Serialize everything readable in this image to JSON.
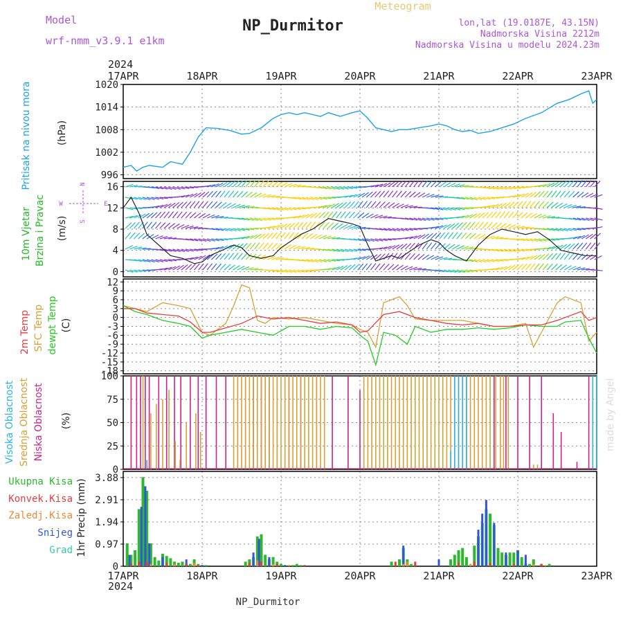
{
  "header": {
    "model_label": "Model",
    "model_name": "wrf-nmm_v3.9.1  e1km",
    "title": "NP_Durmitor",
    "meteogram": "Meteogram",
    "lonlat": "lon,lat (19.0187E, 43.15N)",
    "elevation": "Nadmorska Visina 2212m",
    "elevation_model": "Nadmorska Visina u modelu 2024.23m",
    "year": "2024",
    "footer": "NP_Durmitor",
    "watermark": "made by Angel"
  },
  "colors": {
    "pressure": "#1aa3e8",
    "wind_label": "#22bb22",
    "t2m": "#e83c3c",
    "sfc": "#d9a033",
    "dew": "#22cc22",
    "cloud_high": "#29b6e0",
    "cloud_mid": "#d9a033",
    "cloud_low": "#cc2288",
    "precip_total": "#2db82d",
    "precip_conv": "#e83c3c",
    "precip_frozen": "#ee8833",
    "precip_snow": "#3355dd",
    "precip_graupel": "#33ccaa",
    "grid": "#888888",
    "model_text": "#aa55dd"
  },
  "chart_data": [
    {
      "type": "line",
      "id": "pressure",
      "ylabel": "Pritisak na nivou mora",
      "unit": "(hPa)",
      "x_ticks": [
        "17APR",
        "18APR",
        "19APR",
        "20APR",
        "21APR",
        "22APR",
        "23APR"
      ],
      "ylim": [
        995,
        1020
      ],
      "yticks": [
        996,
        1002,
        1008,
        1014,
        1020
      ],
      "series": [
        {
          "x": [
            0,
            0.1,
            0.17,
            0.25,
            0.33,
            0.5,
            0.6,
            0.75,
            0.85,
            0.95,
            1.05,
            1.2,
            1.35,
            1.5,
            1.6,
            1.75,
            1.9,
            2.0,
            2.1,
            2.2,
            2.3,
            2.4,
            2.5,
            2.6,
            2.75,
            2.9,
            3.0,
            3.1,
            3.2,
            3.3,
            3.4,
            3.5,
            3.6,
            3.75,
            3.9,
            4.0,
            4.1,
            4.2,
            4.3,
            4.4,
            4.5,
            4.65,
            4.8,
            4.95,
            5.1,
            5.3,
            5.5,
            5.65,
            5.8,
            5.9,
            5.95,
            6.0
          ],
          "y": [
            998,
            998.5,
            997,
            998,
            998.5,
            998,
            999.5,
            998.8,
            1002,
            1006,
            1008.5,
            1008.3,
            1007.8,
            1006.8,
            1007,
            1008.5,
            1011,
            1012,
            1012.5,
            1012,
            1012.5,
            1012,
            1011.5,
            1012.5,
            1011.5,
            1012.5,
            1013,
            1011,
            1008.5,
            1008,
            1007.5,
            1008,
            1008,
            1008.5,
            1009,
            1009.5,
            1009,
            1008,
            1007.5,
            1007.8,
            1007,
            1007.5,
            1008.5,
            1009.5,
            1011,
            1012.5,
            1015,
            1016,
            1017.5,
            1018.3,
            1015,
            1016
          ]
        }
      ]
    },
    {
      "type": "line",
      "id": "wind",
      "ylabel_1": "10m Vjetar",
      "ylabel_2": "Brzina i Pravac",
      "unit": "(m/s)",
      "ylim": [
        -1,
        17
      ],
      "yticks": [
        0,
        4,
        8,
        12,
        16
      ],
      "compass": {
        "n": "N",
        "s": "S",
        "e": "E",
        "w": "W"
      },
      "series": [
        {
          "x": [
            0,
            0.1,
            0.2,
            0.3,
            0.45,
            0.6,
            0.75,
            0.9,
            1.0,
            1.1,
            1.25,
            1.4,
            1.5,
            1.6,
            1.75,
            1.9,
            2.0,
            2.1,
            2.25,
            2.4,
            2.5,
            2.6,
            2.75,
            2.9,
            3.0,
            3.1,
            3.2,
            3.3,
            3.4,
            3.5,
            3.6,
            3.75,
            3.9,
            4.0,
            4.1,
            4.2,
            4.35,
            4.5,
            4.65,
            4.8,
            4.95,
            5.1,
            5.25,
            5.4,
            5.55,
            5.7,
            5.85,
            6.0
          ],
          "y": [
            12,
            14,
            11,
            7,
            5,
            3,
            2.5,
            1.5,
            1.8,
            3,
            4,
            5,
            4.5,
            3,
            2.5,
            3,
            4.5,
            5.5,
            7,
            8,
            9,
            10,
            9.5,
            9,
            8.5,
            5,
            2,
            2.5,
            3,
            2.5,
            3.5,
            5,
            6,
            5.5,
            4,
            3,
            2,
            5,
            7,
            8,
            7.5,
            7,
            7.5,
            6,
            4,
            3.5,
            3,
            3
          ]
        }
      ]
    },
    {
      "type": "line",
      "id": "temperature",
      "ylabels": [
        "2m Temp",
        "SFC Temp",
        "dewpt Temp"
      ],
      "unit": "(C)",
      "ylim": [
        -19,
        13
      ],
      "yticks": [
        12,
        9,
        6,
        3,
        0,
        -3,
        -6,
        -9,
        -12,
        -15,
        -18
      ],
      "series": [
        {
          "name": "2m Temp",
          "x": [
            0,
            0.15,
            0.3,
            0.5,
            0.7,
            0.85,
            1.0,
            1.1,
            1.3,
            1.5,
            1.7,
            1.9,
            2.1,
            2.3,
            2.5,
            2.7,
            2.9,
            3.0,
            3.1,
            3.3,
            3.5,
            3.7,
            3.9,
            4.1,
            4.3,
            4.5,
            4.7,
            4.9,
            5.1,
            5.3,
            5.5,
            5.6,
            5.8,
            5.9,
            6.0
          ],
          "y": [
            3,
            3,
            1.5,
            1,
            0.5,
            -1.5,
            -5,
            -5,
            -3.5,
            -2,
            0.5,
            -0.5,
            0,
            -1,
            -2,
            -1.5,
            -2.5,
            -5,
            -4.5,
            1,
            2,
            0,
            -1,
            -2,
            -2.5,
            -2,
            -3,
            -3,
            -2.5,
            -2.5,
            -1,
            0,
            2,
            -1,
            0
          ]
        },
        {
          "name": "SFC Temp",
          "x": [
            0,
            0.15,
            0.3,
            0.5,
            0.7,
            0.85,
            1.0,
            1.1,
            1.3,
            1.4,
            1.5,
            1.6,
            1.7,
            1.8,
            1.9,
            2.1,
            2.3,
            2.5,
            2.7,
            2.9,
            3.0,
            3.1,
            3.2,
            3.3,
            3.5,
            3.6,
            3.7,
            3.9,
            4.1,
            4.3,
            4.5,
            4.7,
            4.9,
            5.1,
            5.2,
            5.4,
            5.5,
            5.6,
            5.8,
            5.9,
            6.0
          ],
          "y": [
            4,
            3,
            2,
            5,
            4,
            3,
            -5,
            -6,
            -2,
            4,
            11,
            10,
            -1,
            -2,
            0,
            -0.5,
            0,
            -1,
            -2,
            -2.5,
            -4,
            -5,
            -10,
            5,
            7,
            4,
            -0.5,
            -1,
            -1,
            -1,
            -2,
            -3,
            -3,
            -2,
            -10,
            0,
            5,
            7,
            5,
            -8,
            -5
          ]
        },
        {
          "name": "dewpt Temp",
          "x": [
            0,
            0.15,
            0.3,
            0.5,
            0.7,
            0.85,
            1.0,
            1.1,
            1.3,
            1.5,
            1.7,
            1.9,
            2.1,
            2.3,
            2.5,
            2.7,
            2.9,
            3.0,
            3.1,
            3.2,
            3.3,
            3.45,
            3.6,
            3.7,
            3.9,
            4.1,
            4.3,
            4.5,
            4.7,
            4.9,
            5.1,
            5.3,
            5.5,
            5.6,
            5.8,
            5.9,
            6.0
          ],
          "y": [
            4,
            2,
            1,
            -1,
            -2,
            -3,
            -7,
            -6,
            -5,
            -4,
            -5,
            -6,
            -3,
            -3,
            -4,
            -3,
            -3.5,
            -6,
            -8,
            -16,
            -5,
            -6,
            -9,
            -3,
            -5,
            -4,
            -4,
            -3.5,
            -4,
            -3.5,
            -2.5,
            -3,
            -3,
            -1.5,
            -1,
            -7,
            -12
          ]
        }
      ]
    },
    {
      "type": "bar",
      "id": "cloud",
      "ylabels": [
        "Visoka Oblacnost",
        "Srednja Oblacnost",
        "Niska Oblacnost"
      ],
      "unit": "(%)",
      "ylim": [
        0,
        100
      ],
      "yticks": [
        0,
        25,
        50,
        75,
        100
      ],
      "series": [
        {
          "name": "Niska Oblacnost",
          "x": [
            0.1,
            0.17,
            0.22,
            0.28,
            0.33,
            0.45,
            0.55,
            0.65,
            0.73,
            0.85,
            0.95,
            1.05,
            1.18,
            1.3,
            1.45,
            1.55,
            1.65,
            1.75,
            1.85,
            1.95,
            2.1,
            2.25,
            2.45,
            2.65,
            2.85,
            3.0,
            4.7,
            4.85,
            5.0,
            5.15,
            5.3,
            5.45,
            5.55,
            5.75,
            5.9
          ],
          "y": [
            100,
            100,
            100,
            100,
            100,
            100,
            100,
            100,
            100,
            100,
            100,
            100,
            100,
            100,
            100,
            100,
            100,
            100,
            100,
            100,
            100,
            100,
            100,
            100,
            100,
            85,
            100,
            100,
            100,
            100,
            100,
            60,
            40,
            8,
            100
          ]
        },
        {
          "name": "Srednja Oblacnost",
          "x": [
            0.25,
            0.35,
            0.42,
            0.5,
            0.58,
            0.66,
            0.72,
            0.8,
            0.92,
            0.98,
            1.4,
            1.45,
            1.5,
            1.55,
            1.6,
            1.65,
            1.7,
            1.75,
            1.8,
            1.85,
            1.9,
            1.95,
            2.0,
            2.05,
            2.1,
            2.15,
            2.2,
            2.25,
            2.3,
            2.35,
            2.4,
            2.45,
            2.5,
            2.55,
            3.05,
            3.1,
            3.15,
            3.2,
            3.25,
            3.3,
            3.35,
            3.4,
            3.45,
            3.5,
            3.55,
            3.6,
            3.65,
            3.7,
            3.75,
            3.8,
            3.85,
            3.9,
            3.95,
            4.0,
            4.05,
            4.1,
            4.15,
            4.2,
            4.25,
            4.3,
            4.35,
            4.4,
            4.45,
            4.5,
            4.55,
            4.6,
            4.65,
            4.72,
            4.78,
            4.82,
            4.88,
            5.2,
            5.25
          ],
          "y": [
            100,
            60,
            70,
            75,
            85,
            30,
            10,
            50,
            60,
            40,
            100,
            100,
            100,
            100,
            100,
            100,
            100,
            100,
            100,
            100,
            100,
            100,
            100,
            100,
            100,
            100,
            100,
            100,
            100,
            100,
            100,
            100,
            100,
            100,
            100,
            100,
            100,
            100,
            100,
            100,
            100,
            100,
            100,
            100,
            100,
            100,
            100,
            100,
            100,
            100,
            100,
            100,
            100,
            100,
            100,
            100,
            100,
            100,
            100,
            100,
            100,
            100,
            100,
            100,
            100,
            100,
            100,
            100,
            100,
            100,
            100,
            5,
            5
          ]
        },
        {
          "name": "Visoka Oblacnost",
          "x": [
            0.3,
            4.15,
            4.2,
            4.25,
            4.3,
            4.35,
            5.95,
            6.0
          ],
          "y": [
            10,
            20,
            100,
            100,
            100,
            100,
            100,
            100
          ]
        }
      ]
    },
    {
      "type": "bar",
      "id": "precip",
      "ylabels": [
        "Ukupna Kisa",
        "Konvek.Kisa",
        "Zaledj.Kisa",
        "Snijeg",
        "Grad"
      ],
      "ylabel_unit": "1hr Precip (mm)",
      "ylim": [
        0,
        4.15
      ],
      "yticks": [
        0,
        0.97,
        1.94,
        2.91,
        3.88
      ],
      "series": [
        {
          "name": "Ukupna Kisa",
          "x": [
            0.05,
            0.1,
            0.15,
            0.2,
            0.25,
            0.3,
            0.35,
            0.4,
            0.45,
            0.5,
            0.55,
            0.6,
            0.65,
            0.7,
            0.75,
            0.8,
            0.85,
            0.9,
            0.95,
            1.0,
            1.05,
            1.55,
            1.6,
            1.65,
            1.7,
            1.75,
            1.8,
            1.85,
            1.9,
            1.95,
            2.0,
            2.05,
            2.1,
            2.15,
            2.2,
            2.25,
            2.3,
            3.4,
            3.5,
            3.55,
            3.6,
            3.65,
            3.7,
            4.15,
            4.2,
            4.25,
            4.3,
            4.35,
            4.45,
            4.5,
            4.55,
            4.6,
            4.65,
            4.7,
            4.75,
            4.8,
            4.85,
            4.9,
            4.95,
            5.0,
            5.05,
            5.1,
            5.15,
            5.2,
            5.3,
            5.4
          ],
          "y": [
            1.0,
            0.5,
            0.7,
            2.5,
            3.9,
            3.3,
            1.0,
            0.4,
            0.25,
            0.55,
            0.45,
            0.35,
            0.2,
            0.15,
            0.2,
            0.1,
            0.1,
            0.3,
            0.1,
            0.05,
            0.05,
            0.2,
            0.3,
            0.4,
            1.3,
            1.4,
            0.5,
            0.3,
            0.4,
            0.2,
            0.1,
            0.05,
            0.05,
            0.05,
            0.1,
            0.05,
            0.05,
            0.2,
            0.3,
            0.8,
            0.3,
            0.1,
            0.05,
            0.3,
            0.5,
            0.7,
            0.8,
            0.4,
            0.9,
            1.3,
            1.9,
            2.5,
            2.3,
            1.8,
            0.8,
            0.6,
            0.5,
            0.6,
            0.6,
            0.7,
            0.4,
            0.1,
            0.1,
            0.3,
            0.1,
            0.1
          ]
        },
        {
          "name": "Konvek.Kisa",
          "x": [
            0.1,
            0.2,
            0.3,
            0.55,
            0.8,
            0.95,
            1.6,
            1.75,
            1.95,
            2.3,
            3.45,
            3.7,
            4.25,
            4.45,
            4.65,
            4.95,
            5.3
          ],
          "y": [
            0.1,
            0.2,
            0.2,
            0.15,
            0.1,
            0.05,
            0.15,
            0.2,
            0.1,
            0.05,
            0.2,
            0.2,
            0.15,
            0.2,
            0.15,
            0.1,
            0.1
          ]
        },
        {
          "name": "Zaledj.Kisa",
          "x": [
            0.35,
            0.65,
            0.9,
            1.7,
            1.9,
            2.1,
            3.55,
            3.6,
            4.4,
            5.2,
            5.35
          ],
          "y": [
            0.1,
            0.1,
            0.15,
            0.25,
            0.1,
            0.05,
            0.1,
            0.2,
            0.1,
            0.1,
            0.05
          ]
        },
        {
          "name": "Snijeg",
          "x": [
            0.08,
            0.23,
            0.28,
            0.33,
            0.5,
            0.8,
            1.0,
            1.65,
            1.72,
            1.85,
            2.05,
            3.55,
            4.0,
            4.5,
            4.55,
            4.6,
            4.7,
            4.85,
            5.0,
            5.1
          ],
          "y": [
            0.5,
            2.6,
            3.5,
            1.0,
            0.4,
            0.3,
            0.05,
            0.6,
            1.2,
            0.4,
            0.05,
            0.9,
            0.3,
            1.6,
            2.3,
            2.9,
            1.9,
            0.6,
            0.7,
            0.5
          ]
        },
        {
          "name": "Grad",
          "x": [],
          "y": []
        }
      ]
    }
  ]
}
